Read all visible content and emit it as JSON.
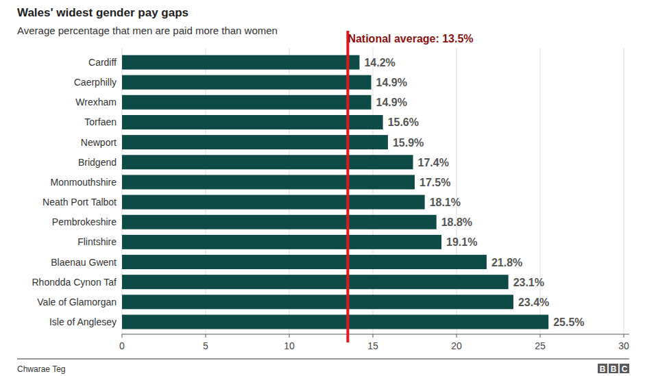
{
  "chart_data": {
    "type": "bar",
    "orientation": "horizontal",
    "title": "Wales' widest gender pay gaps",
    "subtitle": "Average percentage that men are paid more than women",
    "categories": [
      "Cardiff",
      "Caerphilly",
      "Wrexham",
      "Torfaen",
      "Newport",
      "Bridgend",
      "Monmouthshire",
      "Neath Port Talbot",
      "Pembrokeshire",
      "Flintshire",
      "Blaenau Gwent",
      "Rhondda Cynon Taf",
      "Vale of Glamorgan",
      "Isle of Anglesey"
    ],
    "values": [
      14.2,
      14.9,
      14.9,
      15.6,
      15.9,
      17.4,
      17.5,
      18.1,
      18.8,
      19.1,
      21.8,
      23.1,
      23.4,
      25.5
    ],
    "value_labels": [
      "14.2%",
      "14.9%",
      "14.9%",
      "15.6%",
      "15.9%",
      "17.4%",
      "17.5%",
      "18.1%",
      "18.8%",
      "19.1%",
      "21.8%",
      "23.1%",
      "23.4%",
      "25.5%"
    ],
    "data_labels": true,
    "color": "#0f4b46",
    "xlim": [
      0,
      30
    ],
    "xticks": [
      0,
      5,
      10,
      15,
      20,
      25,
      30
    ],
    "grid": true,
    "annotations": [
      {
        "text": "National average: 13.5%",
        "value": 13.5
      }
    ],
    "source": "Chwarae Teg",
    "logo": "BBC"
  }
}
